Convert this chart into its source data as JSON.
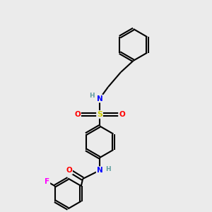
{
  "background_color": "#ebebeb",
  "bond_color": "#000000",
  "atom_colors": {
    "N": "#0000ff",
    "O": "#ff0000",
    "S": "#cccc00",
    "F": "#ff00ff",
    "H": "#5f9ea0",
    "C": "#000000"
  },
  "figsize": [
    3.0,
    3.0
  ],
  "dpi": 100,
  "xlim": [
    0,
    10
  ],
  "ylim": [
    0,
    10
  ]
}
